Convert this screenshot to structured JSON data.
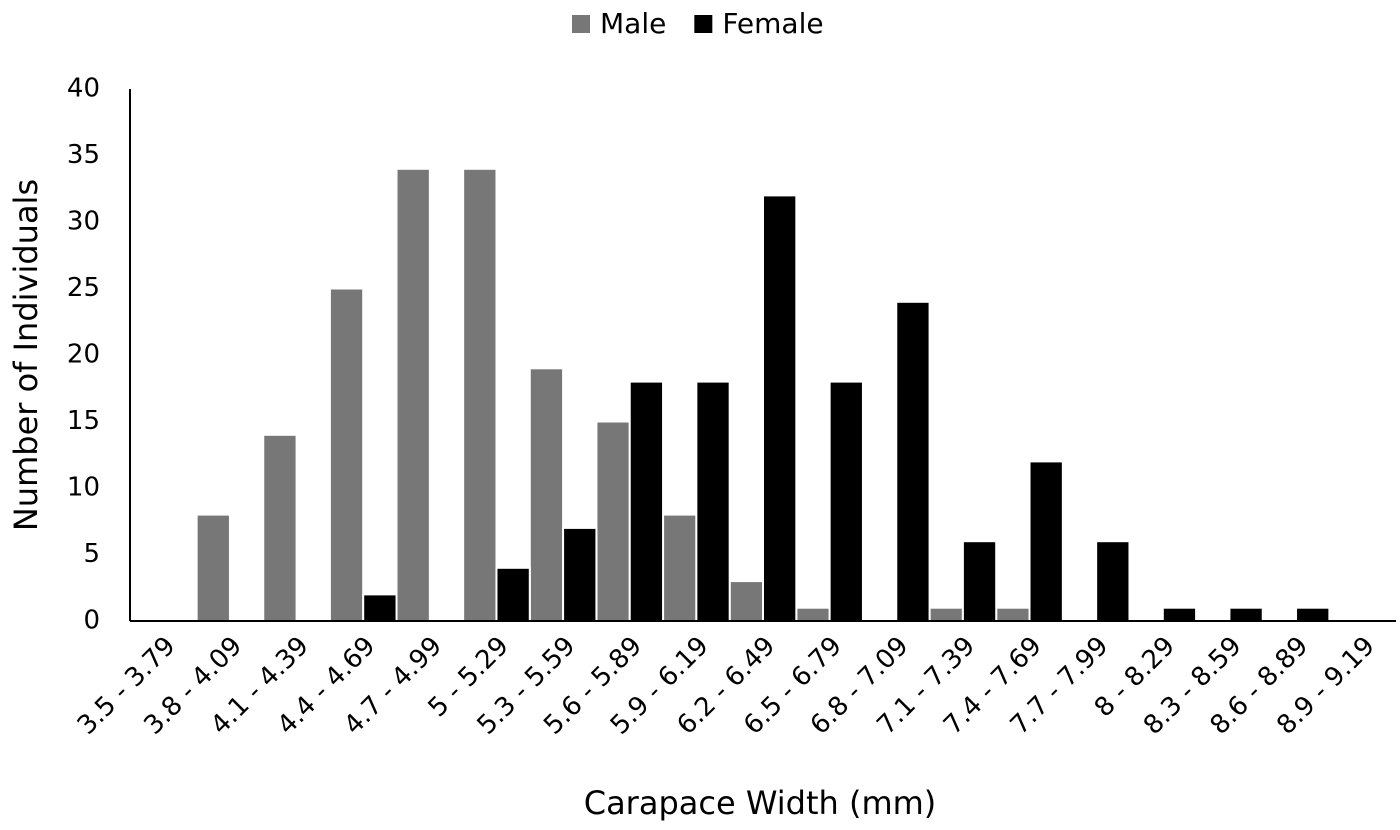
{
  "chart_data": {
    "type": "bar",
    "x_label": "Carapace Width (mm)",
    "y_label": "Number of Individuals",
    "categories": [
      "3.5 - 3.79",
      "3.8 - 4.09",
      "4.1 - 4.39",
      "4.4 - 4.69",
      "4.7 - 4.99",
      "5 - 5.29",
      "5.3 - 5.59",
      "5.6 - 5.89",
      "5.9 - 6.19",
      "6.2 - 6.49",
      "6.5 - 6.79",
      "6.8 - 7.09",
      "7.1 - 7.39",
      "7.4 - 7.69",
      "7.7 - 7.99",
      "8 - 8.29",
      "8.3 - 8.59",
      "8.6 - 8.89",
      "8.9 - 9.19"
    ],
    "series": [
      {
        "name": "Male",
        "color": "#777777",
        "values": [
          0,
          8,
          14,
          25,
          34,
          34,
          19,
          15,
          8,
          3,
          1,
          0,
          1,
          1,
          0,
          0,
          0,
          0,
          0
        ]
      },
      {
        "name": "Female",
        "color": "#000000",
        "values": [
          0,
          0,
          0,
          2,
          0,
          4,
          7,
          18,
          18,
          32,
          18,
          24,
          6,
          12,
          6,
          1,
          1,
          1,
          0
        ]
      }
    ],
    "ylim": [
      0,
      40
    ],
    "yticks": [
      0,
      5,
      10,
      15,
      20,
      25,
      30,
      35,
      40
    ],
    "grid": false,
    "legend": "top"
  }
}
